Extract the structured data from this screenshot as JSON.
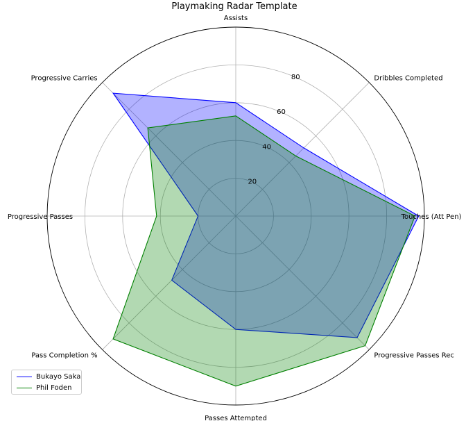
{
  "chart_data": {
    "type": "radar",
    "title": "Playmaking Radar Template",
    "categories": [
      "Touches (Att Pen)",
      "Dribbles Completed",
      "Assists",
      "Progressive Carries",
      "Progressive Passes",
      "Pass Completion %",
      "Passes Attempted",
      "Progressive Passes Rec"
    ],
    "radial_ticks": [
      "20",
      "40",
      "60",
      "80"
    ],
    "rlim": [
      0,
      100
    ],
    "grid": true,
    "legend_position": "lower-left",
    "series": [
      {
        "name": "Bukayo Saka",
        "color": "#0000ff",
        "fill": "#0000ff",
        "values": [
          97,
          51,
          60,
          92,
          20,
          48,
          60,
          91
        ]
      },
      {
        "name": "Phil Foden",
        "color": "#008000",
        "fill": "#008000",
        "values": [
          95,
          45,
          53,
          66,
          42,
          92,
          90,
          97
        ]
      }
    ]
  }
}
